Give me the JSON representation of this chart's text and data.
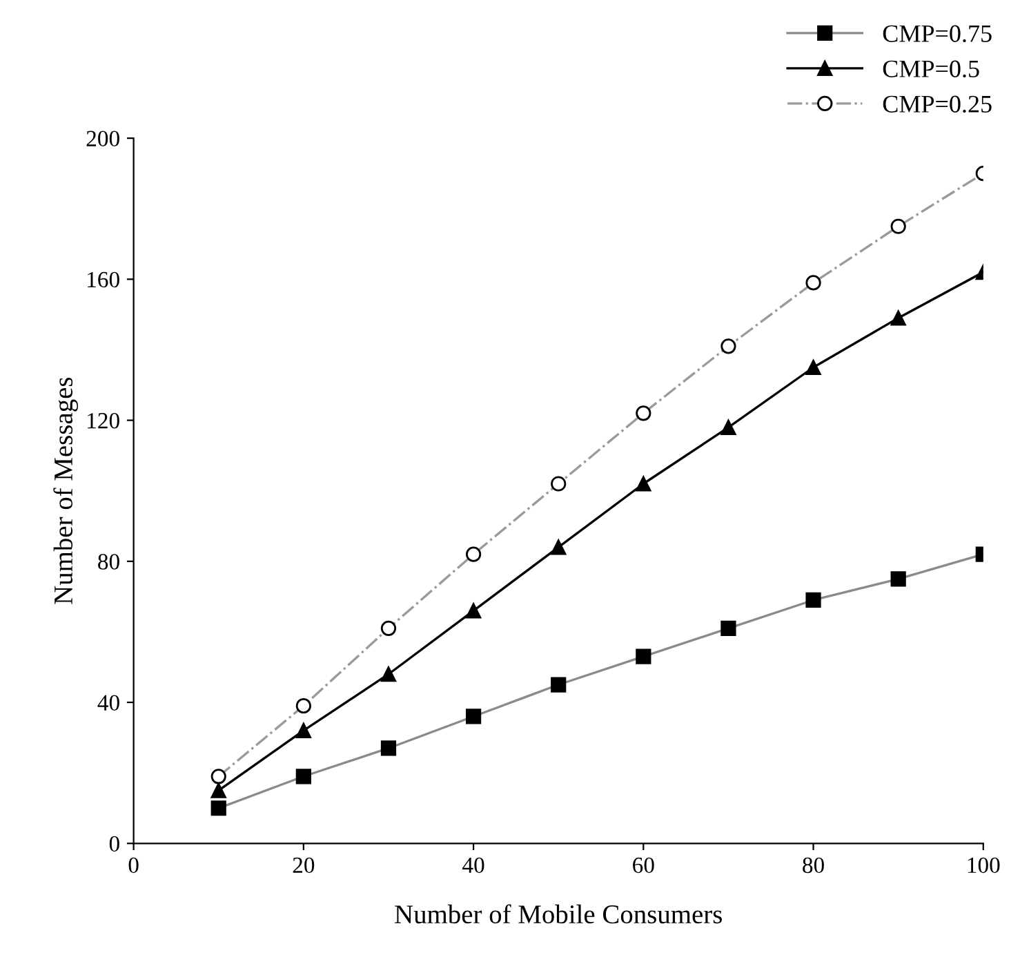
{
  "chart_data": {
    "type": "line",
    "xlabel": "Number of Mobile Consumers",
    "ylabel": "Number of Messages",
    "x": [
      10,
      20,
      30,
      40,
      50,
      60,
      70,
      80,
      90,
      100
    ],
    "series": [
      {
        "name": "CMP=0.75",
        "color": "#8a8a8a",
        "marker": "square",
        "line_style": "solid",
        "values": [
          10,
          19,
          27,
          36,
          45,
          53,
          61,
          69,
          75,
          82
        ]
      },
      {
        "name": "CMP=0.5",
        "color": "#000000",
        "marker": "triangle",
        "line_style": "solid",
        "values": [
          15,
          32,
          48,
          66,
          84,
          102,
          118,
          135,
          149,
          162
        ]
      },
      {
        "name": "CMP=0.25",
        "color": "#9a9a9a",
        "marker": "circle",
        "line_style": "dashdot",
        "values": [
          19,
          39,
          61,
          82,
          102,
          122,
          141,
          159,
          175,
          190
        ]
      }
    ],
    "xlim": [
      0,
      100
    ],
    "xticks": [
      0,
      20,
      40,
      60,
      80,
      100
    ],
    "ylim": [
      0,
      200
    ],
    "yticks": [
      0,
      40,
      80,
      120,
      160,
      200
    ],
    "grid": false,
    "legend": "top right"
  }
}
